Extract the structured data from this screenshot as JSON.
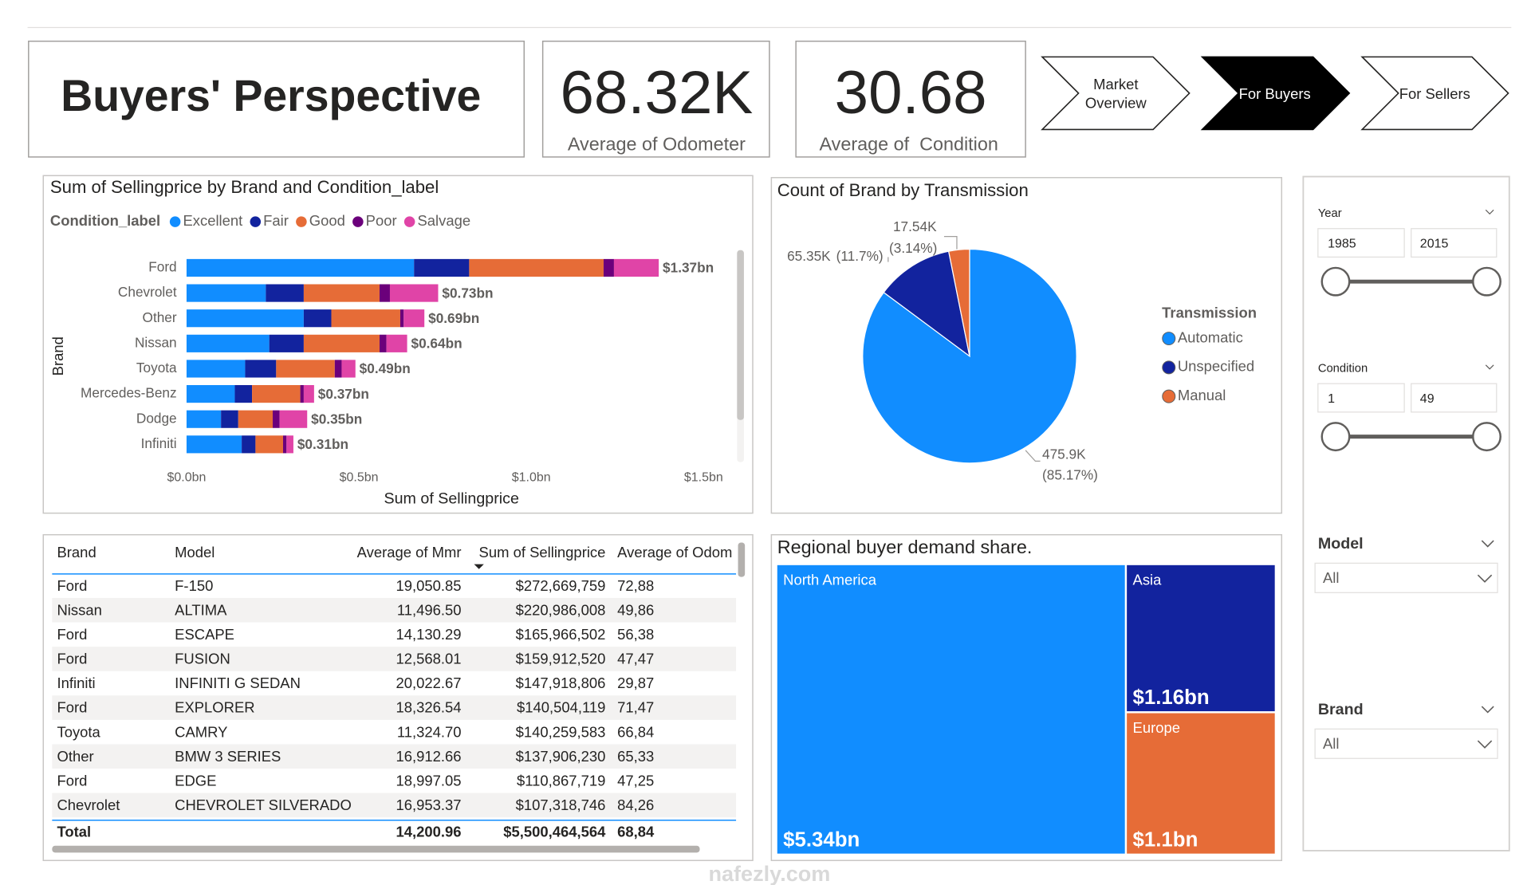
{
  "header": {
    "title": "Buyers' Perspective"
  },
  "cards": [
    {
      "value": "68.32K",
      "label": "Average of Odometer"
    },
    {
      "value": "30.68",
      "label": "Average of  Condition"
    }
  ],
  "navigation": [
    {
      "lines": [
        "Market",
        "Overview"
      ]
    },
    {
      "lines": [
        "For Buyers"
      ]
    },
    {
      "lines": [
        "For Sellers"
      ]
    }
  ],
  "chart_data": [
    {
      "type": "bar",
      "title": "Sum of Sellingprice by Brand and Condition_label",
      "legend_title": "Condition_label",
      "categories": [
        "Ford",
        "Chevrolet",
        "Other",
        "Nissan",
        "Toyota",
        "Mercedes-Benz",
        "Dodge",
        "Infiniti"
      ],
      "series": [
        {
          "name": "Excellent",
          "color": "#118DFF",
          "values": [
            0.66,
            0.23,
            0.34,
            0.24,
            0.17,
            0.14,
            0.1,
            0.16
          ]
        },
        {
          "name": "Fair",
          "color": "#12239E",
          "values": [
            0.16,
            0.11,
            0.08,
            0.1,
            0.09,
            0.05,
            0.05,
            0.04
          ]
        },
        {
          "name": "Good",
          "color": "#E66C37",
          "values": [
            0.39,
            0.22,
            0.2,
            0.22,
            0.17,
            0.14,
            0.1,
            0.08
          ]
        },
        {
          "name": "Poor",
          "color": "#6B007B",
          "values": [
            0.03,
            0.03,
            0.01,
            0.02,
            0.02,
            0.01,
            0.02,
            0.01
          ]
        },
        {
          "name": "Salvage",
          "color": "#E044A7",
          "values": [
            0.13,
            0.14,
            0.06,
            0.06,
            0.04,
            0.03,
            0.08,
            0.02
          ]
        }
      ],
      "totals": [
        1.37,
        0.73,
        0.69,
        0.64,
        0.49,
        0.37,
        0.35,
        0.31
      ],
      "total_labels": [
        "$1.37bn",
        "$0.73bn",
        "$0.69bn",
        "$0.64bn",
        "$0.49bn",
        "$0.37bn",
        "$0.35bn",
        "$0.31bn"
      ],
      "xlim": [
        0,
        1.6
      ],
      "xticks": [
        {
          "value": 0,
          "label": "$0.0bn"
        },
        {
          "value": 0.5,
          "label": "$0.5bn"
        },
        {
          "value": 1.0,
          "label": "$1.0bn"
        },
        {
          "value": 1.5,
          "label": "$1.5bn"
        }
      ],
      "x_label": "Sum of Sellingprice",
      "y_label": "Brand"
    },
    {
      "type": "pie",
      "title": "Count of Brand by Transmission",
      "legend_title": "Transmission",
      "categories": [
        "Automatic",
        "Unspecified",
        "Manual"
      ],
      "values": [
        475.9,
        65.35,
        17.54
      ],
      "value_labels": [
        "475.9K",
        "65.35K",
        "17.54K"
      ],
      "percent_labels": [
        "(85.17%)",
        "(11.7%)",
        "(3.14%)"
      ],
      "colors": [
        "#118DFF",
        "#12239E",
        "#E66C37"
      ]
    },
    {
      "type": "treemap",
      "title": "Regional buyer demand share.",
      "categories": [
        "North America",
        "Asia",
        "Europe"
      ],
      "values": [
        5.34,
        1.16,
        1.1
      ],
      "value_labels": [
        "$5.34bn",
        "$1.16bn",
        "$1.1bn"
      ],
      "colors": [
        "#118DFF",
        "#12239E",
        "#E66C37"
      ]
    }
  ],
  "table": {
    "columns": [
      "Brand",
      "Model",
      "Average of Mmr",
      "Sum of Sellingprice",
      "Average of Odom"
    ],
    "rows": [
      [
        "Ford",
        "F-150",
        "19,050.85",
        "$272,669,759",
        "72,88"
      ],
      [
        "Nissan",
        "ALTIMA",
        "11,496.50",
        "$220,986,008",
        "49,86"
      ],
      [
        "Ford",
        "ESCAPE",
        "14,130.29",
        "$165,966,502",
        "56,38"
      ],
      [
        "Ford",
        "FUSION",
        "12,568.01",
        "$159,912,520",
        "47,47"
      ],
      [
        "Infiniti",
        "INFINITI G SEDAN",
        "20,022.67",
        "$147,918,806",
        "29,87"
      ],
      [
        "Ford",
        "EXPLORER",
        "18,326.54",
        "$140,504,119",
        "71,47"
      ],
      [
        "Toyota",
        "CAMRY",
        "11,324.70",
        "$140,259,583",
        "66,84"
      ],
      [
        "Other",
        "BMW 3 SERIES",
        "16,912.66",
        "$137,906,230",
        "65,33"
      ],
      [
        "Ford",
        "EDGE",
        "18,997.05",
        "$110,867,719",
        "47,25"
      ],
      [
        "Chevrolet",
        "CHEVROLET SILVERADO",
        "16,953.37",
        "$107,318,746",
        "84,26"
      ]
    ],
    "total_row": {
      "label": "Total",
      "values": [
        "14,200.96",
        "$5,500,464,564",
        "68,84"
      ]
    }
  },
  "slicers": {
    "year": {
      "label": "Year",
      "from": "1985",
      "to": "2015"
    },
    "condition": {
      "label": "Condition",
      "from": "1",
      "to": "49"
    },
    "model": {
      "label": "Model",
      "value": "All"
    },
    "brand": {
      "label": "Brand",
      "value": "All"
    }
  },
  "watermark": "nafezly.com"
}
